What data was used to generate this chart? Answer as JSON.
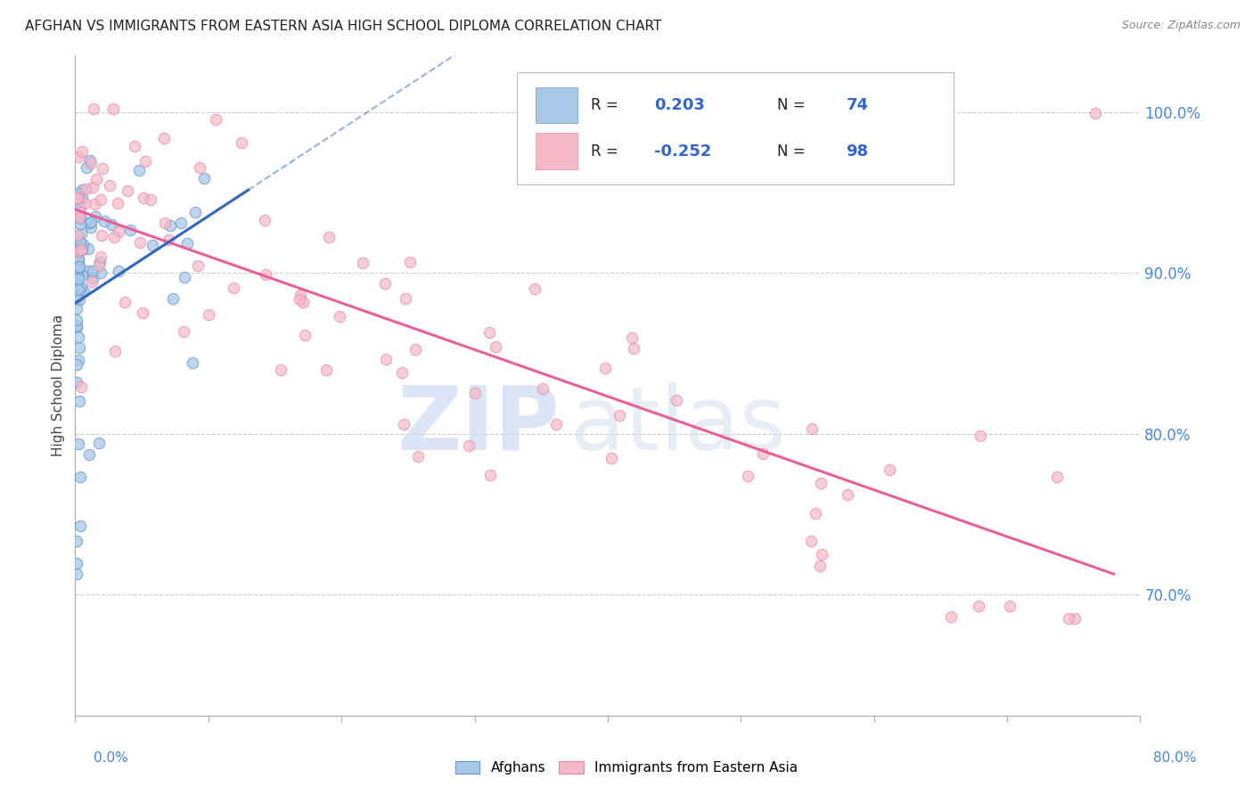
{
  "title": "AFGHAN VS IMMIGRANTS FROM EASTERN ASIA HIGH SCHOOL DIPLOMA CORRELATION CHART",
  "source": "Source: ZipAtlas.com",
  "ylabel": "High School Diploma",
  "ylabel_right": [
    "70.0%",
    "80.0%",
    "90.0%",
    "100.0%"
  ],
  "ylabel_right_vals": [
    0.7,
    0.8,
    0.9,
    1.0
  ],
  "xmin": 0.0,
  "xmax": 0.8,
  "ymin": 0.625,
  "ymax": 1.035,
  "blue_color": "#a8c8e8",
  "blue_edge": "#6699cc",
  "pink_color": "#f4b8c8",
  "pink_edge": "#e888a8",
  "trend_blue": "#3366bb",
  "trend_pink": "#e8609a",
  "grid_color": "#cccccc",
  "axis_color": "#aaaaaa",
  "title_color": "#222222",
  "source_color": "#888888",
  "label_color": "#4488dd",
  "legend_text_color": "#222222",
  "legend_val_color": "#3366cc",
  "watermark_zip_color": "#c8d8f0",
  "watermark_atlas_color": "#c8d8e8"
}
